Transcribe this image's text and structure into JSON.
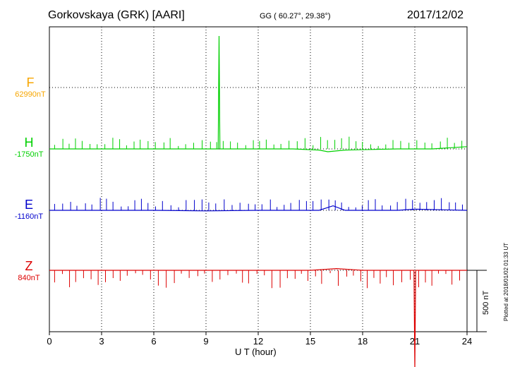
{
  "header": {
    "title": "Gorkovskaya (GRK)  [AARI]",
    "coords": "GG ( 60.27°,  29.38°)",
    "date": "2017/12/02"
  },
  "components": [
    {
      "name": "F",
      "value": "62990nT",
      "color": "#f7a600"
    },
    {
      "name": "H",
      "value": "-1750nT",
      "color": "#00d000"
    },
    {
      "name": "E",
      "value": "-1160nT",
      "color": "#0000cc"
    },
    {
      "name": "Z",
      "value": "840nT",
      "color": "#dd0000"
    }
  ],
  "footer": {
    "xlabel": "U T (hour)",
    "scale_label": "500 nT",
    "plotted": "Plotted at 2018/01/02 01:33 UT"
  },
  "chart_data": {
    "type": "line",
    "xlabel": "U T (hour)",
    "ylabel": "",
    "xlim": [
      0,
      24
    ],
    "x_ticks": [
      0,
      3,
      6,
      9,
      12,
      15,
      18,
      21,
      24
    ],
    "grid": true,
    "scale_bar_nT": 500,
    "series": [
      {
        "name": "F",
        "color": "#f7a600",
        "baseline_nT": 62990,
        "x": [],
        "y": []
      },
      {
        "name": "H",
        "color": "#00d000",
        "baseline_nT": -1750,
        "x": [
          0,
          2,
          4,
          6,
          8,
          9.7,
          9.75,
          9.8,
          11,
          14,
          15.5,
          16,
          17,
          20,
          22,
          24
        ],
        "y": [
          0,
          0,
          0,
          0,
          0,
          0,
          1000,
          0,
          0,
          0,
          -10,
          -25,
          -10,
          0,
          0,
          20
        ]
      },
      {
        "name": "E",
        "color": "#0000cc",
        "baseline_nT": -1160,
        "x": [
          0,
          3,
          6,
          9,
          12,
          14,
          15.5,
          16.3,
          17,
          20,
          21,
          24
        ],
        "y": [
          0,
          0,
          0,
          -5,
          0,
          0,
          0,
          40,
          0,
          0,
          10,
          0
        ]
      },
      {
        "name": "Z",
        "color": "#dd0000",
        "baseline_nT": 840,
        "x": [
          0,
          3,
          6,
          9,
          12,
          15,
          16.5,
          18,
          20,
          20.95,
          21.0,
          21.05,
          22,
          24
        ],
        "y": [
          0,
          0,
          0,
          0,
          0,
          0,
          15,
          0,
          0,
          0,
          -880,
          0,
          0,
          0
        ]
      }
    ]
  }
}
